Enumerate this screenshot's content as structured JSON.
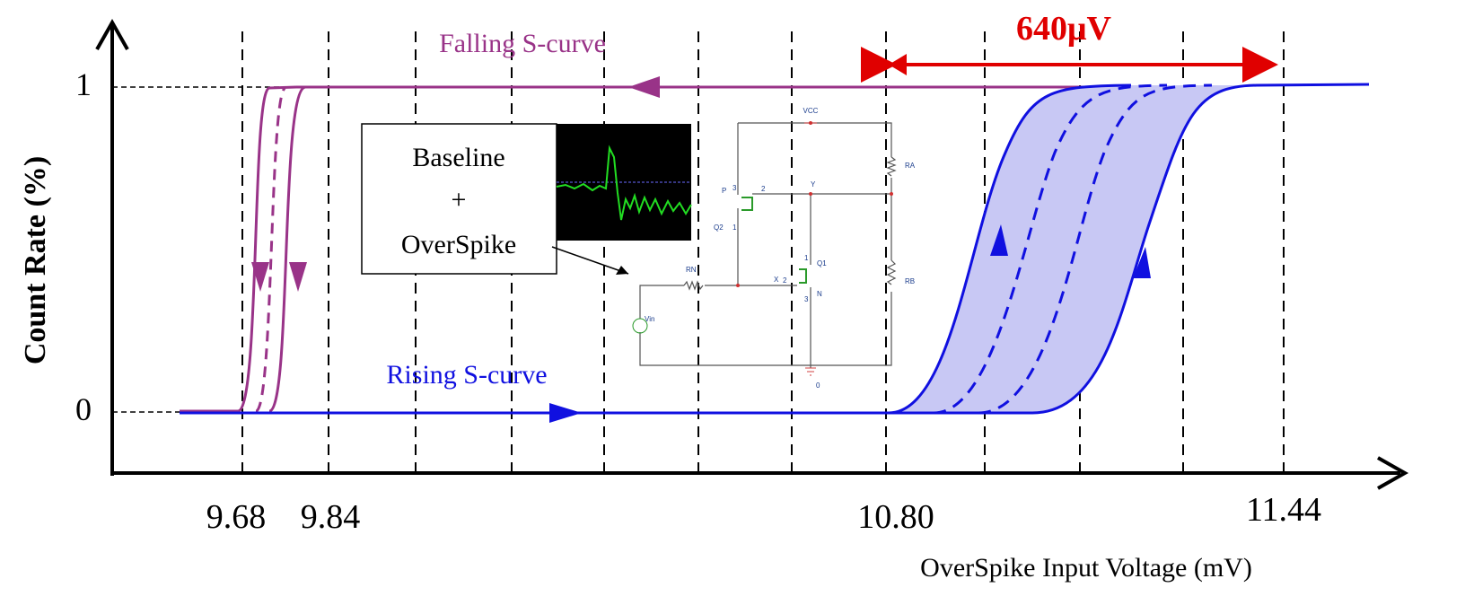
{
  "axes": {
    "y_label": "Count Rate (%)",
    "y_ticks": [
      "1",
      "0"
    ],
    "x_ticks": [
      "9.68",
      "9.84",
      "10.80",
      "11.44"
    ],
    "x_label": "OverSpike Input Voltage (mV)"
  },
  "annotations": {
    "falling": "Falling S-curve",
    "rising": "Rising S-curve",
    "span": "640μV"
  },
  "inset_box": {
    "lines": [
      "Baseline",
      "+",
      "OverSpike"
    ]
  },
  "circuit": {
    "labels": [
      "VCC",
      "RA",
      "RB",
      "P",
      "Q2",
      "Y",
      "X",
      "Q1",
      "N",
      "RN",
      "Vin",
      "0"
    ],
    "pins": [
      "3",
      "2",
      "1",
      "1",
      "2",
      "3"
    ]
  }
}
